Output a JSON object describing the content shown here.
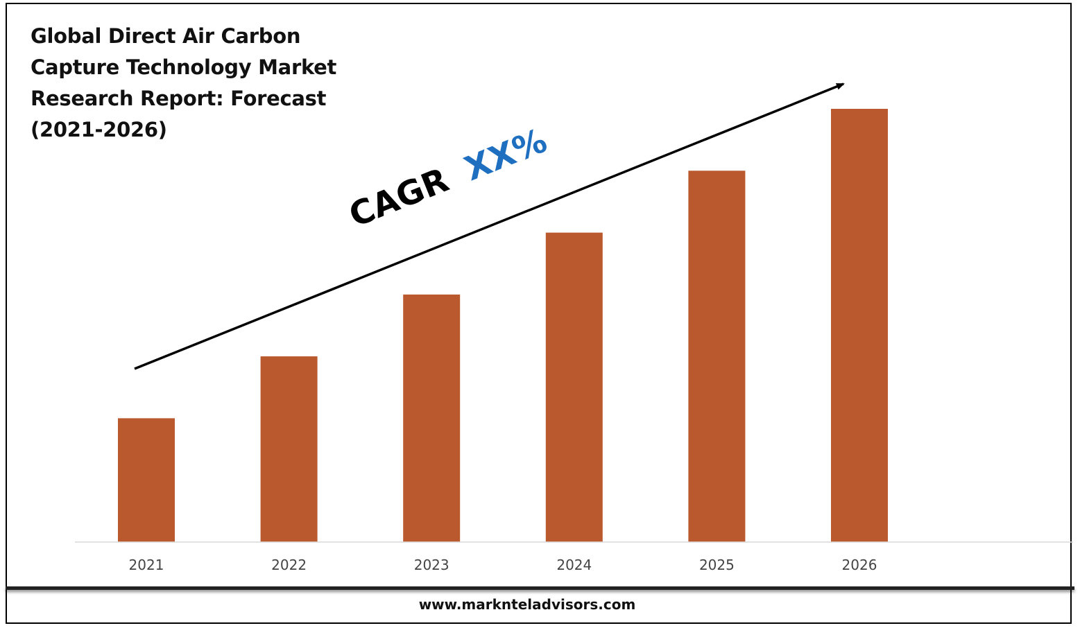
{
  "chart_data": {
    "type": "bar",
    "title": "Global Direct Air Carbon Capture Technology Market Research Report: Forecast (2021-2026)",
    "title_lines": [
      "Global Direct Air Carbon",
      "Capture Technology Market",
      "Research Report: Forecast",
      "(2021-2026)"
    ],
    "categories": [
      "2021",
      "2022",
      "2023",
      "2024",
      "2025",
      "2026"
    ],
    "values": [
      1,
      1.5,
      2,
      2.5,
      3,
      3.5
    ],
    "ylim": [
      0,
      3.5
    ],
    "xlabel": "",
    "ylabel": "",
    "grid": false,
    "bar_color": "#BA582E",
    "annotation": {
      "prefix": "CAGR",
      "value": "XX%",
      "prefix_color": "#000000",
      "value_color": "#1F6FC1"
    }
  },
  "footer": {
    "website": "www.marknteladvisors.com"
  }
}
